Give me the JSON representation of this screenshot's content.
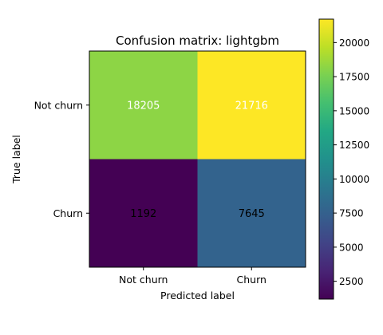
{
  "chart_data": {
    "type": "heatmap",
    "title": "Confusion matrix: lightgbm",
    "xlabel": "Predicted label",
    "ylabel": "True label",
    "x_categories": [
      "Not churn",
      "Churn"
    ],
    "y_categories": [
      "Not churn",
      "Churn"
    ],
    "matrix": [
      [
        18205,
        21716
      ],
      [
        1192,
        7645
      ]
    ],
    "matrix_labels": [
      [
        "18205",
        "21716"
      ],
      [
        "1192",
        "7645"
      ]
    ],
    "value_label_colors": [
      [
        "#ffffff",
        "#ffffff"
      ],
      [
        "#000000",
        "#000000"
      ]
    ],
    "colormap": "viridis",
    "colorbar": {
      "range": [
        1192,
        21716
      ],
      "ticks": [
        2500,
        5000,
        7500,
        10000,
        12500,
        15000,
        17500,
        20000
      ],
      "tick_labels": [
        "2500",
        "5000",
        "7500",
        "10000",
        "12500",
        "15000",
        "17500",
        "20000"
      ]
    },
    "grid": false
  }
}
